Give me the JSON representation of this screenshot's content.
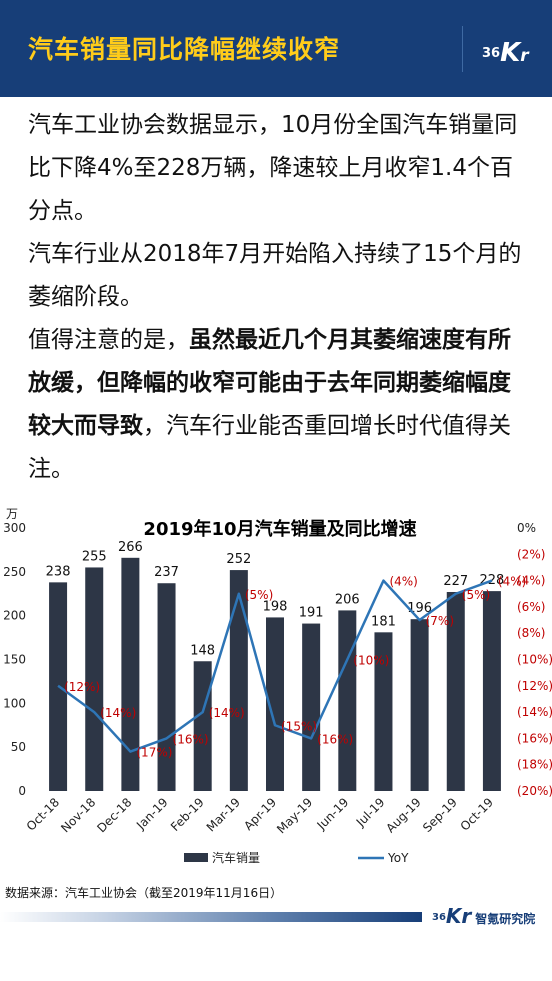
{
  "header": {
    "title": "汽车销量同比降幅继续收窄",
    "logo_num": "36",
    "logo_k": "K",
    "logo_r": "r"
  },
  "body": {
    "p1": "汽车工业协会数据显示，10月份全国汽车销量同比下降4%至228万辆，降速较上月收窄1.4个百分点。",
    "p2": "汽车行业从2018年7月开始陷入持续了15个月的萎缩阶段。",
    "p3_lead": "值得注意的是，",
    "p3_bold": "虽然最近几个月其萎缩速度有所放缓，但降幅的收窄可能由于去年同期萎缩幅度较大而导致",
    "p3_tail": "，汽车行业能否重回增长时代值得关注。"
  },
  "chart_data": {
    "type": "bar",
    "title": "2019年10月汽车销量及同比增速",
    "unit_label": "万",
    "categories": [
      "Oct-18",
      "Nov-18",
      "Dec-18",
      "Jan-19",
      "Feb-19",
      "Mar-19",
      "Apr-19",
      "May-19",
      "Jun-19",
      "Jul-19",
      "Aug-19",
      "Sep-19",
      "Oct-19"
    ],
    "series": [
      {
        "name": "汽车销量",
        "type": "bar",
        "axis": "left",
        "values": [
          238,
          255,
          266,
          237,
          148,
          252,
          198,
          191,
          206,
          181,
          196,
          227,
          228
        ],
        "labels": [
          "238",
          "255",
          "266",
          "237",
          "148",
          "252",
          "198",
          "191",
          "206",
          "181",
          "196",
          "227",
          "228"
        ],
        "color": "#2d3646"
      },
      {
        "name": "YoY",
        "type": "line",
        "axis": "right",
        "values": [
          -12,
          -14,
          -17,
          -16,
          -14,
          -5,
          -15,
          -16,
          -10,
          -4,
          -7,
          -5,
          -4
        ],
        "labels": [
          "(12%)",
          "(14%)",
          "(17%)",
          "(16%)",
          "(14%)",
          "(5%)",
          "(15%)",
          "(16%)",
          "(10%)",
          "(4%)",
          "(7%)",
          "(5%)",
          "(4%)"
        ],
        "color": "#2e75b6"
      }
    ],
    "y_left": {
      "min": 0,
      "max": 300,
      "ticks": [
        "0",
        "50",
        "100",
        "150",
        "200",
        "250",
        "300"
      ]
    },
    "y_right": {
      "min": -20,
      "max": 0,
      "ticks": [
        "0%",
        "(2%)",
        "(4%)",
        "(6%)",
        "(8%)",
        "(10%)",
        "(12%)",
        "(14%)",
        "(16%)",
        "(18%)",
        "(20%)"
      ],
      "tick_color": "#c00000"
    },
    "label_color": "#c00000",
    "grid": false,
    "legend_position": "bottom"
  },
  "source": "数据来源：汽车工业协会（截至2019年11月16日）",
  "footer": {
    "logo_num": "36",
    "logo_k": "Kr",
    "label": "智氪研究院"
  }
}
